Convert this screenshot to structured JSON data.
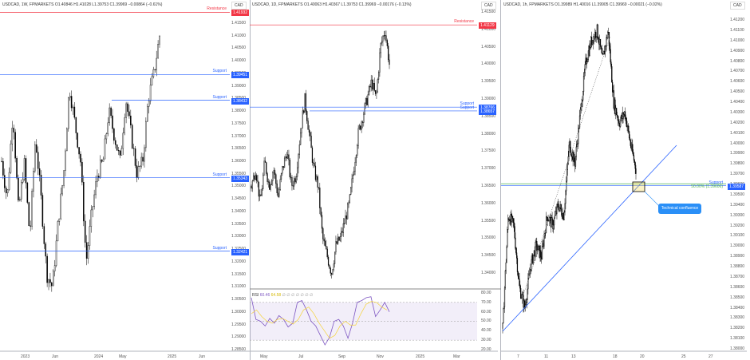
{
  "colors": {
    "resistance": "#f23645",
    "support": "#2962ff",
    "fib": "#4caf50",
    "rsi": "#7e57c2",
    "rsi_ma": "#f5d33b",
    "callout": "#2a8ff7"
  },
  "currency_label": "CAD",
  "panels": [
    {
      "legend": "USDCAD, 1W, FPMARKETS  O1.40846  H1.41028  L1.39753  C1.39969  −0.00864 (−0.61%)",
      "price_ticks": [
        "1.41500",
        "1.41000",
        "1.40500",
        "1.40000",
        "1.39500",
        "1.39000",
        "1.38500",
        "1.38000",
        "1.37500",
        "1.37000",
        "1.36500",
        "1.36000",
        "1.35500",
        "1.35000",
        "1.34500",
        "1.34000",
        "1.33500",
        "1.33000",
        "1.32500",
        "1.32000",
        "1.31500",
        "1.31000",
        "1.30500",
        "1.30000",
        "1.29500",
        "1.29000",
        "1.28500"
      ],
      "time_ticks": [
        "2023",
        "Jun",
        "2024",
        "May",
        "2025",
        "Jun"
      ],
      "levels": [
        {
          "label": "Resistance",
          "value": "1.41932",
          "type": "resistance"
        },
        {
          "label": "Support",
          "value": "1.39451",
          "type": "support"
        },
        {
          "label": "Support",
          "value": "1.38432",
          "type": "support"
        },
        {
          "label": "Support",
          "value": "1.35343",
          "type": "support"
        },
        {
          "label": "Support",
          "value": "1.32421",
          "type": "support"
        }
      ]
    },
    {
      "legend": "USDCAD, 1D, FPMARKETS  O1.40063  H1.40367  L1.39753  C1.39969  −0.00176 (−0.13%)",
      "price_ticks": [
        "1.41500",
        "1.41000",
        "1.40500",
        "1.40000",
        "1.39500",
        "1.39000",
        "1.38500",
        "1.38000",
        "1.37500",
        "1.37000",
        "1.36500",
        "1.36000",
        "1.35500",
        "1.35000",
        "1.34500",
        "1.34000"
      ],
      "time_ticks": [
        "May",
        "Jul",
        "Sep",
        "Nov",
        "2025",
        "Mar"
      ],
      "levels": [
        {
          "label": "Resistance",
          "value": "1.41129",
          "type": "resistance"
        },
        {
          "label": "Support",
          "value": "1.38766",
          "type": "support"
        },
        {
          "label": "Support",
          "value": "1.38657",
          "type": "support"
        }
      ],
      "rsi": {
        "label": "RSI",
        "value": "60.46",
        "ma_value": "64.58",
        "placeholders": "∅ ∅ ∅ ∅ ∅ ∅ ∅",
        "ticks": [
          "80.00",
          "70.00",
          "60.00",
          "50.00",
          "40.00",
          "30.00",
          "20.00"
        ]
      }
    },
    {
      "legend": "USDCAD, 1h, FPMARKETS  O1.39989  H1.40016  L1.39905  C1.39969  −0.00021 (−0.02%)",
      "price_ticks": [
        "1.41200",
        "1.41100",
        "1.41000",
        "1.40900",
        "1.40800",
        "1.40700",
        "1.40600",
        "1.40500",
        "1.40400",
        "1.40300",
        "1.40200",
        "1.40100",
        "1.40000",
        "1.39900",
        "1.39800",
        "1.39700",
        "1.39600",
        "1.39500",
        "1.39400",
        "1.39300",
        "1.39200",
        "1.39100",
        "1.39000",
        "1.38900",
        "1.38800",
        "1.38700",
        "1.38600",
        "1.38500",
        "1.38400",
        "1.38300",
        "1.38200",
        "1.38100",
        "1.38000"
      ],
      "time_ticks": [
        "7",
        "11",
        "13",
        "18",
        "20",
        "25",
        "27"
      ],
      "levels": [
        {
          "label": "Support",
          "value": "1.39587",
          "type": "support"
        },
        {
          "label": "50.00% (1.39606)",
          "value": "1.39606",
          "type": "fib"
        }
      ],
      "callout": "Technical confluence"
    }
  ],
  "chart_data": [
    {
      "type": "candlestick",
      "timeframe": "1W",
      "path": [
        1.36,
        1.345,
        1.38,
        1.34,
        1.36,
        1.33,
        1.37,
        1.345,
        1.315,
        1.31,
        1.335,
        1.355,
        1.39,
        1.375,
        1.36,
        1.32,
        1.34,
        1.355,
        1.36,
        1.38,
        1.37,
        1.36,
        1.385,
        1.37,
        1.355,
        1.36,
        1.385,
        1.395,
        1.41
      ]
    },
    {
      "type": "candlestick",
      "timeframe": "1D",
      "path": [
        1.365,
        1.37,
        1.36,
        1.372,
        1.365,
        1.37,
        1.362,
        1.37,
        1.375,
        1.365,
        1.368,
        1.38,
        1.39,
        1.38,
        1.37,
        1.365,
        1.35,
        1.345,
        1.34,
        1.348,
        1.35,
        1.355,
        1.36,
        1.37,
        1.38,
        1.385,
        1.39,
        1.395,
        1.39,
        1.405,
        1.41,
        1.4
      ],
      "rsi": [
        75,
        52,
        50,
        45,
        53,
        48,
        56,
        52,
        44,
        48,
        70,
        72,
        62,
        50,
        45,
        35,
        25,
        33,
        50,
        52,
        45,
        32,
        48,
        70,
        72,
        75,
        76,
        55,
        62,
        70,
        60
      ],
      "rsi_ma": [
        58,
        62,
        55,
        50,
        48,
        52,
        53,
        50,
        47,
        52,
        62,
        65,
        58,
        48,
        40,
        32,
        35,
        45,
        50,
        46,
        46,
        58,
        68,
        71,
        70,
        65,
        62
      ]
    },
    {
      "type": "candlestick",
      "timeframe": "1h",
      "path": [
        1.382,
        1.393,
        1.392,
        1.386,
        1.384,
        1.388,
        1.39,
        1.389,
        1.393,
        1.392,
        1.394,
        1.393,
        1.4,
        1.398,
        1.403,
        1.408,
        1.41,
        1.411,
        1.408,
        1.411,
        1.404,
        1.402,
        1.403,
        1.4,
        1.3975
      ]
    }
  ]
}
